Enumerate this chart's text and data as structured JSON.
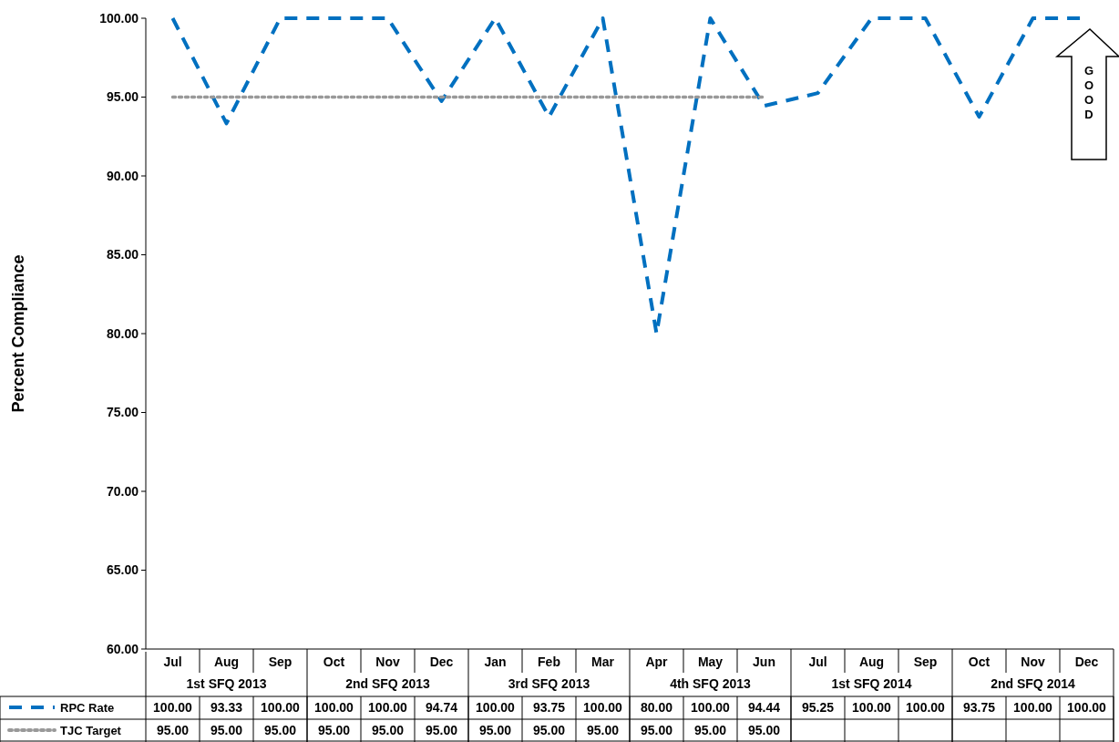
{
  "chart_data": {
    "type": "line",
    "ylabel": "Percent Compliance",
    "categories": [
      "Jul",
      "Aug",
      "Sep",
      "Oct",
      "Nov",
      "Dec",
      "Jan",
      "Feb",
      "Mar",
      "Apr",
      "May",
      "Jun",
      "Jul",
      "Aug",
      "Sep",
      "Oct",
      "Nov",
      "Dec"
    ],
    "series": [
      {
        "name": "RPC Rate",
        "color": "#0070c0",
        "line_style": "dashed",
        "values": [
          100,
          93.33,
          100,
          100,
          100,
          94.74,
          100,
          93.75,
          100,
          80,
          100,
          94.44,
          95.25,
          100,
          100,
          93.75,
          100,
          100
        ],
        "value_labels": [
          "100.00",
          "93.33",
          "100.00",
          "100.00",
          "100.00",
          "94.74",
          "100.00",
          "93.75",
          "100.00",
          "80.00",
          "100.00",
          "94.44",
          "95.25",
          "100.00",
          "100.00",
          "93.75",
          "100.00",
          "100.00"
        ]
      },
      {
        "name": "TJC Target",
        "color": "#999999",
        "line_style": "dotted",
        "values": [
          95,
          95,
          95,
          95,
          95,
          95,
          95,
          95,
          95,
          95,
          95,
          95,
          null,
          null,
          null,
          null,
          null,
          null
        ],
        "value_labels": [
          "95.00",
          "95.00",
          "95.00",
          "95.00",
          "95.00",
          "95.00",
          "95.00",
          "95.00",
          "95.00",
          "95.00",
          "95.00",
          "95.00",
          null,
          null,
          null,
          null,
          null,
          null
        ]
      }
    ],
    "ylim": [
      60,
      100
    ],
    "yticks": [
      {
        "value": 60,
        "label": "60.00"
      },
      {
        "value": 65,
        "label": "65.00"
      },
      {
        "value": 70,
        "label": "70.00"
      },
      {
        "value": 75,
        "label": "75.00"
      },
      {
        "value": 80,
        "label": "80.00"
      },
      {
        "value": 85,
        "label": "85.00"
      },
      {
        "value": 90,
        "label": "90.00"
      },
      {
        "value": 95,
        "label": "95.00"
      },
      {
        "value": 100,
        "label": "100.00"
      }
    ],
    "marker": "none",
    "grid": false,
    "legend": "bottom",
    "annotations": [
      "1st SFQ 2013",
      "2nd SFQ 2013",
      "3rd SFQ 2013",
      "4th SFQ 2013",
      "1st SFQ 2014",
      "2nd SFQ 2014",
      "GOOD"
    ]
  }
}
